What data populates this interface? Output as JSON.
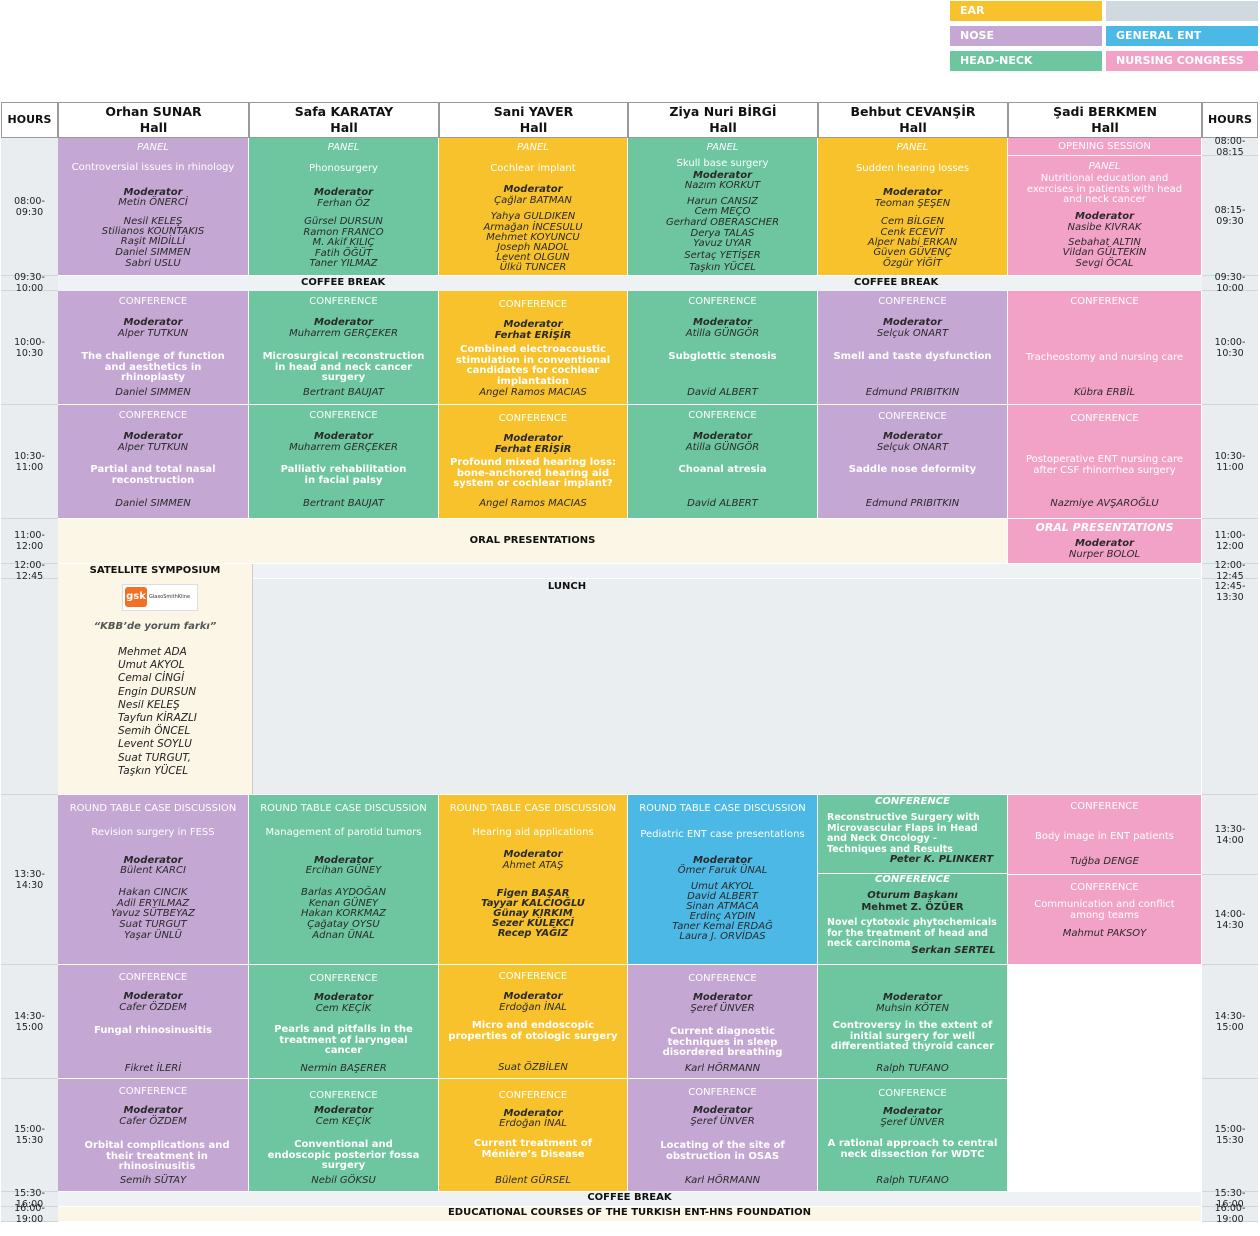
{
  "legend": {
    "ear": "EAR",
    "nose": "NOSE",
    "head_neck": "HEAD-NECK",
    "general_ent": "GENERAL ENT",
    "nursing": "NURSING CONGRESS",
    "colors": {
      "ear": "#f7c22c",
      "nose": "#c4a7d3",
      "head_neck": "#6dc6a0",
      "general_ent": "#4bb8e6",
      "nursing": "#f3a2c7",
      "blank": "#cfd9df"
    }
  },
  "header": {
    "hours_left": "HOURS",
    "hours_right": "HOURS",
    "halls": [
      {
        "name": "Orhan SUNAR",
        "suffix": "Hall"
      },
      {
        "name": "Safa KARATAY",
        "suffix": "Hall"
      },
      {
        "name": "Sani YAVER",
        "suffix": "Hall"
      },
      {
        "name": "Ziya Nuri BİRGİ",
        "suffix": "Hall"
      },
      {
        "name": "Behbut CEVANŞİR",
        "suffix": "Hall"
      },
      {
        "name": "Şadi BERKMEN",
        "suffix": "Hall"
      }
    ]
  },
  "hours_left": [
    "08:00-09:30",
    "09:30-10:00",
    "10:00-10:30",
    "10:30-11:00",
    "11:00-12:00",
    "12:00-12:45",
    "13:30-14:30",
    "14:30-15:00",
    "15:00-15:30",
    "15:30-16:00",
    "16:00-19:00"
  ],
  "hours_right": [
    "08:00-08:15",
    "08:15-09:30",
    "09:30-10:00",
    "10:00-10:30",
    "10:30-11:00",
    "11:00-12:00",
    "12:00-12:45",
    "12:45-13:30",
    "13:30-14:00",
    "14:00-14:30",
    "14:30-15:00",
    "15:00-15:30",
    "15:30-16:00",
    "16:00-19:00"
  ],
  "bands": {
    "coffee1_a": "COFFEE BREAK",
    "coffee1_b": "COFFEE BREAK",
    "oral": "ORAL PRESENTATIONS",
    "satellite": "SATELLITE SYMPOSIUM",
    "lunch": "LUNCH",
    "coffee2": "COFFEE BREAK",
    "courses": "EDUCATIONAL COURSES OF THE TURKISH ENT-HNS FOUNDATION"
  },
  "satellite": {
    "logo_text": "gsk",
    "logo_sub": "GlaxoSmithKline",
    "title": "“KBB’de yorum farkı”",
    "speakers": [
      "Mehmet ADA",
      "Umut AKYOL",
      "Cemal CİNGİ",
      "Engin DURSUN",
      "Nesil KELEŞ",
      "Tayfun KİRAZLI",
      "Semih ÖNCEL",
      "Levent SOYLU",
      "Suat TURGUT,",
      "Taşkın YÜCEL"
    ]
  },
  "s1": {
    "c1": {
      "type": "PANEL",
      "title": "Controversial issues in rhinology",
      "mod_label": "Moderator",
      "mod": "Metin ÖNERCİ",
      "people": [
        "Nesil KELEŞ",
        "Stilianos KOUNTAKIS",
        "Raşit MİDİLLİ",
        "Daniel SIMMEN",
        "Sabri USLU"
      ]
    },
    "c2": {
      "type": "PANEL",
      "title": "Phonosurgery",
      "mod_label": "Moderator",
      "mod": "Ferhan ÖZ",
      "people": [
        "Gürsel DURSUN",
        "Ramon FRANCO",
        "M. Akif KILIÇ",
        "Fatih ÖĞÜT",
        "Taner YILMAZ"
      ]
    },
    "c3": {
      "type": "PANEL",
      "title": "Cochlear implant",
      "mod_label": "Moderator",
      "mod": "Çağlar BATMAN",
      "people": [
        "Yahya GULDIKEN",
        "Armağan İNCESULU",
        "Mehmet KOYUNCU",
        "Joseph NADOL",
        "Levent OLGUN",
        "Ülkü TUNCER"
      ]
    },
    "c4": {
      "type": "PANEL",
      "title": "Skull base surgery",
      "mod_label": "Moderator",
      "mod": "Nazım KORKUT",
      "people": [
        "Harun CANSIZ",
        "Cem MEÇO",
        "Gerhard OBERASCHER",
        "Derya TALAS",
        "Yavuz UYAR",
        "Sertaç YETİŞER",
        "Taşkın YÜCEL"
      ]
    },
    "c5": {
      "type": "PANEL",
      "title": "Sudden hearing losses",
      "mod_label": "Moderator",
      "mod": "Teoman ŞEŞEN",
      "people": [
        "Cem BİLGEN",
        "Cenk ECEVİT",
        "Alper Nabi ERKAN",
        "Güven GÜVENÇ",
        "Özgür YİĞİT"
      ]
    },
    "c6_opening": "OPENING SESSION",
    "c6": {
      "type": "PANEL",
      "title": "Nutritional education and exercises in patients with head and neck cancer",
      "mod_label": "Moderator",
      "mod": "Nasibe KIVRAK",
      "people": [
        "Sebahat ALTIN",
        "Vildan GÜLTEKİN",
        "Sevgi ÖCAL"
      ]
    }
  },
  "s2": [
    {
      "type": "CONFERENCE",
      "mod_label": "Moderator",
      "mod": "Alper TUTKUN",
      "title": "The challenge of function and aesthetics in rhinoplasty",
      "speaker": "Daniel SIMMEN"
    },
    {
      "type": "CONFERENCE",
      "mod_label": "Moderator",
      "mod": "Muharrem GERÇEKER",
      "title": "Microsurgical reconstruction in head and neck cancer surgery",
      "speaker": "Bertrant BAUJAT"
    },
    {
      "type": "CONFERENCE",
      "mod_label": "Moderator",
      "mod": "Ferhat ERİŞİR",
      "title": "Combined electroacoustic stimulation in conventional candidates for cochlear implantation",
      "speaker": "Angel Ramos MACIAS"
    },
    {
      "type": "CONFERENCE",
      "mod_label": "Moderator",
      "mod": "Atilla GÜNGÖR",
      "title": "Subglottic stenosis",
      "speaker": "David ALBERT"
    },
    {
      "type": "CONFERENCE",
      "mod_label": "Moderator",
      "mod": "Selçuk ONART",
      "title": "Smell and taste dysfunction",
      "speaker": "Edmund PRIBITKIN"
    },
    {
      "type": "CONFERENCE",
      "title": "Tracheostomy and nursing care",
      "speaker": "Kübra ERBİL"
    }
  ],
  "s3": [
    {
      "type": "CONFERENCE",
      "mod_label": "Moderator",
      "mod": "Alper TUTKUN",
      "title": "Partial and total nasal reconstruction",
      "speaker": "Daniel SIMMEN"
    },
    {
      "type": "CONFERENCE",
      "mod_label": "Moderator",
      "mod": "Muharrem GERÇEKER",
      "title": "Palliativ rehabilitation in facial palsy",
      "speaker": "Bertrant BAUJAT"
    },
    {
      "type": "CONFERENCE",
      "mod_label": "Moderator",
      "mod": "Ferhat ERİŞİR",
      "title": "Profound mixed hearing loss: bone-anchored hearing aid system or cochlear implant?",
      "speaker": "Angel Ramos MACIAS"
    },
    {
      "type": "CONFERENCE",
      "mod_label": "Moderator",
      "mod": "Atilla GÜNGÖR",
      "title": "Choanal atresia",
      "speaker": "David ALBERT"
    },
    {
      "type": "CONFERENCE",
      "mod_label": "Moderator",
      "mod": "Selçuk ONART",
      "title": "Saddle nose deformity",
      "speaker": "Edmund PRIBITKIN"
    },
    {
      "type": "CONFERENCE",
      "title": "Postoperative ENT nursing care after CSF rhinorrhea surgery",
      "speaker": "Nazmiye AVŞAROĞLU"
    }
  ],
  "oral6": {
    "title": "ORAL PRESENTATIONS",
    "mod_label": "Moderator",
    "mod": "Nurper BOLOL"
  },
  "s4": {
    "c1": {
      "type": "ROUND TABLE CASE DISCUSSION",
      "title": "Revision surgery in FESS",
      "mod_label": "Moderator",
      "mod": "Bülent KARCI",
      "people": [
        "Hakan  CINCIK",
        "Adil ERYILMAZ",
        "Yavuz SÜTBEYAZ",
        "Suat TURGUT",
        "Yaşar ÜNLÜ"
      ]
    },
    "c2": {
      "type": "ROUND TABLE CASE DISCUSSION",
      "title": "Management of parotid tumors",
      "mod_label": "Moderator",
      "mod": "Ercihan GÜNEY",
      "people": [
        "Barlas AYDOĞAN",
        "Kenan GÜNEY",
        "Hakan KORKMAZ",
        "Çağatay OYSU",
        "Adnan ÜNAL"
      ]
    },
    "c3": {
      "type": "ROUND TABLE CASE DISCUSSION",
      "title": "Hearing aid applications",
      "mod_label": "Moderator",
      "mod": "Ahmet ATAŞ",
      "people": [
        "Figen BAŞAR",
        "Tayyar KALCIOĞLU",
        "Günay KIRKIM",
        "Sezer KÜLEKCİ",
        "Recep YAĞIZ"
      ]
    },
    "c4": {
      "type": "ROUND TABLE CASE DISCUSSION",
      "title": "Pediatric ENT case presentations",
      "mod_label": "Moderator",
      "mod": "Ömer Faruk ÜNAL",
      "people": [
        "Umut AKYOL",
        "David ALBERT",
        "Sinan ATMACA",
        "Erdinç AYDIN",
        "Taner Kemal ERDAĞ",
        "Laura J. ORVİDAS"
      ]
    },
    "c5a": {
      "type": "CONFERENCE",
      "title": "Reconstructive Surgery with Microvascular Flaps in Head and Neck Oncology - Techniques and Results",
      "speaker": "Peter K. PLINKERT"
    },
    "c5b": {
      "type": "CONFERENCE",
      "chair_label": "Oturum Başkanı",
      "chair": "Mehmet Z. ÖZÜER",
      "title": "Novel cytotoxic phytochemicals for the treatment of head and neck carcinoma",
      "speaker": "Serkan SERTEL"
    },
    "c6a": {
      "type": "CONFERENCE",
      "title": "Body image in ENT patients",
      "speaker": "Tuğba DENGE"
    },
    "c6b": {
      "type": "CONFERENCE",
      "title": "Communication and conflict among teams",
      "speaker": "Mahmut PAKSOY"
    }
  },
  "s5": [
    {
      "type": "CONFERENCE",
      "mod_label": "Moderator",
      "mod": "Cafer ÖZDEM",
      "title": "Fungal rhinosinusitis",
      "speaker": "Fikret İLERİ"
    },
    {
      "type": "CONFERENCE",
      "mod_label": "Moderator",
      "mod": "Cem KEÇİK",
      "title": "Pearls and pitfalls in the treatment of laryngeal cancer",
      "speaker": "Nermin BAŞERER"
    },
    {
      "type": "CONFERENCE",
      "mod_label": "Moderator",
      "mod": "Erdoğan İNAL",
      "title": "Micro and endoscopic properties of otologic surgery",
      "speaker": "Suat ÖZBİLEN"
    },
    {
      "type": "CONFERENCE",
      "mod_label": "Moderator",
      "mod": "Şeref ÜNVER",
      "title": "Current diagnostic techniques in sleep disordered breathing",
      "speaker": "Karl HÖRMANN"
    },
    {
      "type": "",
      "mod_label": "Moderator",
      "mod": "Muhsin KÖTEN",
      "title": "Controversy in the extent of initial surgery for well differentiated thyroid cancer",
      "speaker": "Ralph TUFANO"
    }
  ],
  "s6": [
    {
      "type": "CONFERENCE",
      "mod_label": "Moderator",
      "mod": "Cafer ÖZDEM",
      "title": "Orbital complications and their treatment in rhinosinusitis",
      "speaker": "Semih SÜTAY"
    },
    {
      "type": "CONFERENCE",
      "mod_label": "Moderator",
      "mod": "Cem KEÇİK",
      "title": "Conventional and endoscopic posterior fossa surgery",
      "speaker": "Nebil GÖKSU"
    },
    {
      "type": "CONFERENCE",
      "mod_label": "Moderator",
      "mod": "Erdoğan İNAL",
      "title": "Current treatment of Ménière’s Disease",
      "speaker": "Bülent GÜRSEL"
    },
    {
      "type": "CONFERENCE",
      "mod_label": "Moderator",
      "mod": "Şeref ÜNVER",
      "title": "Locating of the site of obstruction in OSAS",
      "speaker": "Karl HÖRMANN"
    },
    {
      "type": "CONFERENCE",
      "mod_label": "Moderator",
      "mod": "Şeref ÜNVER",
      "title": "A rational approach to central neck dissection for WDTC",
      "speaker": "Ralph TUFANO"
    }
  ]
}
